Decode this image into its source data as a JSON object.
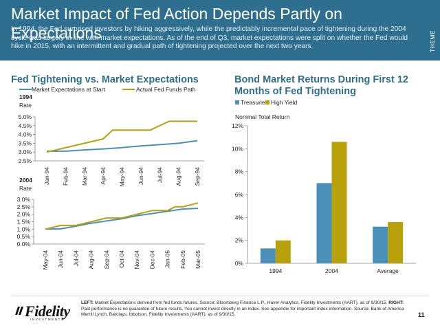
{
  "header": {
    "title": "Market Impact of Fed Action Depends Partly on Expectations",
    "subtitle": "In 1994, the Fed surprised investors by hiking aggressively, while the predictably incremental pace of tightening during the 2004 cycle was largely in line with market expectations. As of the end of Q3, market expectations were split on whether the Fed would hike in 2015, with an intermittent and gradual path of tightening projected over the next two years.",
    "side_tab": "THEME",
    "band_color": "#2e6e8f"
  },
  "chart_data": [
    {
      "type": "line",
      "title": "Fed Tightening vs. Market Expectations",
      "subplot_label": "1994",
      "ylabel": "Rate",
      "categories": [
        "Jan-94",
        "Feb-94",
        "Mar-94",
        "Apr-94",
        "May-94",
        "Jun-94",
        "Jul-94",
        "Aug-94",
        "Sep-94"
      ],
      "yticks": [
        "2.5%",
        "3.0%",
        "3.5%",
        "4.0%",
        "4.5%",
        "5.0%"
      ],
      "ylim": [
        2.5,
        5.0
      ],
      "series": [
        {
          "name": "Market Expectations at Start",
          "color": "#4a90b8",
          "x": [
            0,
            1,
            2,
            3,
            4,
            5,
            6,
            7,
            8
          ],
          "values": [
            3.05,
            3.05,
            3.12,
            3.18,
            3.25,
            3.35,
            3.42,
            3.5,
            3.65
          ]
        },
        {
          "name": "Actual Fed Funds Path",
          "color": "#b8a10a",
          "x": [
            0,
            2,
            3,
            3.5,
            4.5,
            5.5,
            6.5,
            7,
            8
          ],
          "values": [
            3.0,
            3.5,
            3.75,
            4.25,
            4.25,
            4.25,
            4.75,
            4.75,
            4.75
          ]
        }
      ],
      "legend": "top"
    },
    {
      "type": "line",
      "subplot_label": "2004",
      "ylabel": "Rate",
      "categories": [
        "May-04",
        "Jun-04",
        "Jul-04",
        "Aug-04",
        "Sep-04",
        "Oct-04",
        "Nov-04",
        "Dec-04",
        "Jan-05",
        "Feb-05",
        "Mar-05"
      ],
      "yticks": [
        "0.0%",
        "0.5%",
        "1.0%",
        "1.5%",
        "2.0%",
        "2.5%",
        "3.0%"
      ],
      "ylim": [
        0.0,
        3.0
      ],
      "series": [
        {
          "name": "Market Expectations at Start",
          "color": "#4a90b8",
          "x": [
            0,
            1,
            2,
            3,
            4,
            5,
            6,
            7,
            8,
            9,
            10
          ],
          "values": [
            1.0,
            1.02,
            1.2,
            1.4,
            1.55,
            1.7,
            1.9,
            2.05,
            2.2,
            2.35,
            2.4
          ]
        },
        {
          "name": "Actual Fed Funds Path",
          "color": "#b8a10a",
          "x": [
            0,
            1,
            1.5,
            2,
            3,
            4,
            5,
            6,
            7,
            8,
            8.5,
            9,
            10
          ],
          "values": [
            1.0,
            1.25,
            1.25,
            1.25,
            1.5,
            1.75,
            1.75,
            2.0,
            2.25,
            2.25,
            2.5,
            2.5,
            2.75
          ]
        }
      ]
    },
    {
      "type": "bar",
      "title": "Bond Market Returns During First 12 Months of Fed Tightening",
      "ylabel": "Nominal Total Return",
      "categories": [
        "1994",
        "2004",
        "Average"
      ],
      "yticks": [
        "0%",
        "2%",
        "4%",
        "6%",
        "8%",
        "10%",
        "12%"
      ],
      "ylim": [
        0,
        12
      ],
      "series": [
        {
          "name": "Treasuries",
          "color": "#4a90b8",
          "values": [
            1.3,
            7.0,
            3.2
          ]
        },
        {
          "name": "High Yield",
          "color": "#b8a10a",
          "values": [
            2.0,
            10.6,
            3.6
          ]
        }
      ],
      "legend": "top-left"
    }
  ],
  "footer": {
    "logo_word": "Fidelity",
    "logo_sub": "INVESTMENTS",
    "notes_label_left": "LEFT:",
    "notes_left": " Market Expectations derived from fed funds futures.  Source: Bloomberg Finance L.P., Haver Analytics, Fidelity Investments (AART), as of 9/30/15. ",
    "notes_label_right": "RIGHT:",
    "notes_right": " Past performance is no guarantee of future results. You cannot invest directly in an index. See appendix for important index information. Source: Bank of America Merrill Lynch, Barclays, Ibbotson, Fidelity Investments (AART), as of 9/30/15.",
    "page_number": "11"
  }
}
